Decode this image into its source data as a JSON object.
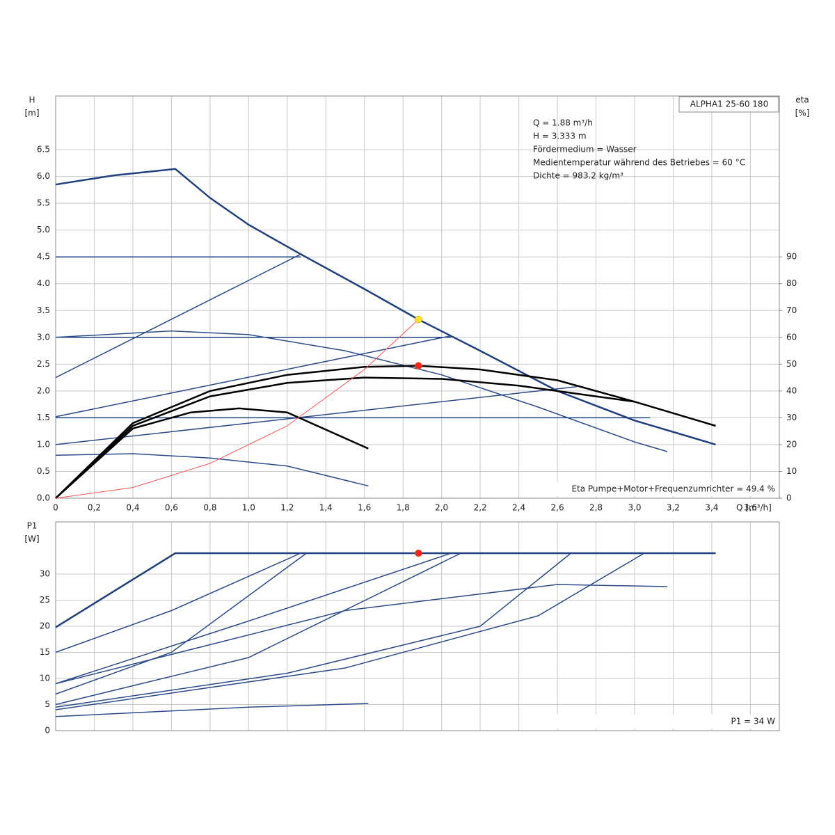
{
  "chart_data": [
    {
      "type": "line",
      "title": "ALPHA1 25-60 180",
      "annotations": [
        "Q = 1.88 m³/h",
        "H = 3.333 m",
        "Fördermedium = Wasser",
        "Medientemperatur während des Betriebes = 60 °C",
        "Dichte = 983.2 kg/m³"
      ],
      "footer": "Eta Pumpe+Motor+Frequenzumrichter = 49.4 %",
      "y_label": [
        "H",
        "[m]"
      ],
      "y2_label": [
        "eta",
        "[%]"
      ],
      "x_label": "Q [m³/h]",
      "xlim": [
        0,
        3.75
      ],
      "ylim": [
        0,
        7.5
      ],
      "y2lim": [
        0,
        150
      ],
      "xticks": [
        0,
        {
          "value": 0.2,
          "label": "0,2"
        },
        {
          "value": 0.4,
          "label": "0,4"
        },
        {
          "value": 0.6,
          "label": "0,6"
        },
        {
          "value": 0.8,
          "label": "0,8"
        },
        {
          "value": 1.0,
          "label": "1,0"
        },
        {
          "value": 1.2,
          "label": "1,2"
        },
        {
          "value": 1.4,
          "label": "1,4"
        },
        {
          "value": 1.6,
          "label": "1,6"
        },
        {
          "value": 1.8,
          "label": "1,8"
        },
        {
          "value": 2.0,
          "label": "2,0"
        },
        {
          "value": 2.2,
          "label": "2,2"
        },
        {
          "value": 2.4,
          "label": "2,4"
        },
        {
          "value": 2.6,
          "label": "2,6"
        },
        {
          "value": 2.8,
          "label": "2,8"
        },
        {
          "value": 3.0,
          "label": "3,0"
        },
        {
          "value": 3.2,
          "label": "3,2"
        },
        {
          "value": 3.4,
          "label": "3,4"
        },
        {
          "value": 3.6,
          "label": "3,6"
        }
      ],
      "yticks": [
        {
          "value": 0,
          "label": "0.0"
        },
        0.5,
        {
          "value": 1,
          "label": "1.0"
        },
        1.5,
        {
          "value": 2,
          "label": "2.0"
        },
        2.5,
        {
          "value": 3,
          "label": "3.0"
        },
        3.5,
        {
          "value": 4,
          "label": "4.0"
        },
        4.5,
        {
          "value": 5,
          "label": "5.0"
        },
        5.5,
        {
          "value": 6,
          "label": "6.0"
        },
        6.5
      ],
      "y2ticks": [
        0,
        10,
        20,
        30,
        40,
        50,
        60,
        70,
        80,
        90
      ],
      "grid": true,
      "series": [
        {
          "color": "#1f3f7f",
          "x": [
            0,
            0.3,
            0.62,
            0.8,
            1.0,
            1.27,
            1.6,
            1.88,
            2.2,
            2.6,
            3.0,
            3.42
          ],
          "values": [
            5.85,
            6.02,
            6.14,
            5.6,
            5.1,
            4.55,
            3.9,
            3.333,
            2.75,
            2.0,
            1.45,
            1.0
          ]
        },
        {
          "color": "#1f3f7f",
          "x": [
            0,
            1.27
          ],
          "values": [
            4.5,
            4.5
          ]
        },
        {
          "color": "#2a4a8a",
          "x": [
            0,
            1.27
          ],
          "values": [
            2.25,
            4.55
          ]
        },
        {
          "color": "#1f3f7f",
          "x": [
            0,
            2.05
          ],
          "values": [
            3.0,
            3.0
          ]
        },
        {
          "color": "#2a4a8a",
          "x": [
            0,
            2.05
          ],
          "values": [
            1.52,
            3.03
          ]
        },
        {
          "color": "#1f3f7f",
          "x": [
            0,
            3.08
          ],
          "values": [
            1.5,
            1.5
          ]
        },
        {
          "color": "#2a4a8a",
          "x": [
            0,
            2.7
          ],
          "values": [
            1.0,
            2.08
          ]
        },
        {
          "color": "#2a4a8a",
          "x": [
            0,
            0.6,
            1.0,
            1.5,
            2.0,
            2.5,
            3.0,
            3.17
          ],
          "values": [
            3.0,
            3.12,
            3.05,
            2.75,
            2.3,
            1.7,
            1.05,
            0.87
          ]
        },
        {
          "color": "#2a4a8a",
          "x": [
            0,
            0.4,
            0.8,
            1.2,
            1.62
          ],
          "values": [
            0.8,
            0.83,
            0.75,
            0.6,
            0.23
          ]
        },
        {
          "color": "#000000",
          "axis": "y2",
          "x": [
            0,
            0.4,
            0.8,
            1.2,
            1.6,
            1.88,
            2.2,
            2.6,
            3.0,
            3.42
          ],
          "values": [
            0,
            28,
            40,
            46,
            49,
            49.4,
            48,
            44,
            36,
            27
          ]
        },
        {
          "color": "#000000",
          "axis": "y2",
          "x": [
            0,
            0.4,
            0.8,
            1.2,
            1.6,
            2.0,
            2.4,
            2.8,
            3.0
          ],
          "values": [
            0,
            27,
            38,
            43,
            45,
            44.5,
            42,
            38,
            36
          ]
        },
        {
          "color": "#000000",
          "axis": "y2",
          "x": [
            0,
            0.4,
            0.7,
            0.95,
            1.2,
            1.62
          ],
          "values": [
            0,
            26,
            32,
            33.5,
            32,
            18.5
          ]
        },
        {
          "color": "#ff5050",
          "x": [
            0,
            0.4,
            0.8,
            1.2,
            1.6,
            1.88
          ],
          "values": [
            0,
            0.2,
            0.65,
            1.35,
            2.4,
            3.333
          ]
        }
      ],
      "points": [
        {
          "color": "#ffe020",
          "x": 1.88,
          "value": 3.333
        },
        {
          "color": "#ff2020",
          "axis": "y2",
          "x": 1.88,
          "value": 49.4
        }
      ]
    },
    {
      "type": "line",
      "footer": "P1 = 34 W",
      "y_label": [
        "P1",
        "[W]"
      ],
      "xlim": [
        0,
        3.75
      ],
      "ylim": [
        0,
        40
      ],
      "xticks": [
        0,
        0.2,
        0.4,
        0.6,
        0.8,
        1.0,
        1.2,
        1.4,
        1.6,
        1.8,
        2.0,
        2.2,
        2.4,
        2.6,
        2.8,
        3.0,
        3.2,
        3.4,
        3.6
      ],
      "yticks": [
        0,
        5,
        10,
        15,
        20,
        25,
        30
      ],
      "grid": true,
      "series": [
        {
          "color": "#1f3f7f",
          "x": [
            0,
            0.62,
            3.42
          ],
          "values": [
            19.8,
            34,
            34
          ]
        },
        {
          "color": "#2a4a8a",
          "x": [
            0,
            0.6,
            1.27
          ],
          "values": [
            15,
            23,
            34
          ]
        },
        {
          "color": "#2a4a8a",
          "x": [
            0,
            0.6,
            1.3
          ],
          "values": [
            7,
            15,
            34
          ]
        },
        {
          "color": "#2a4a8a",
          "x": [
            0,
            1.0,
            2.05
          ],
          "values": [
            9,
            21,
            34
          ]
        },
        {
          "color": "#2a4a8a",
          "x": [
            0,
            1.0,
            2.1
          ],
          "values": [
            5,
            14,
            34
          ]
        },
        {
          "color": "#2a4a8a",
          "x": [
            0,
            1.5,
            2.6,
            3.17
          ],
          "values": [
            9,
            23,
            28,
            27.6
          ]
        },
        {
          "color": "#2a4a8a",
          "x": [
            0,
            1.2,
            2.2,
            2.67
          ],
          "values": [
            4.5,
            11,
            20,
            34
          ]
        },
        {
          "color": "#2a4a8a",
          "x": [
            0,
            1.5,
            2.5,
            3.05
          ],
          "values": [
            4,
            12,
            22,
            34
          ]
        },
        {
          "color": "#2a4a8a",
          "x": [
            0,
            1.0,
            1.62
          ],
          "values": [
            2.7,
            4.5,
            5.2
          ]
        }
      ],
      "points": [
        {
          "color": "#ff2020",
          "x": 1.88,
          "value": 34
        }
      ]
    }
  ]
}
